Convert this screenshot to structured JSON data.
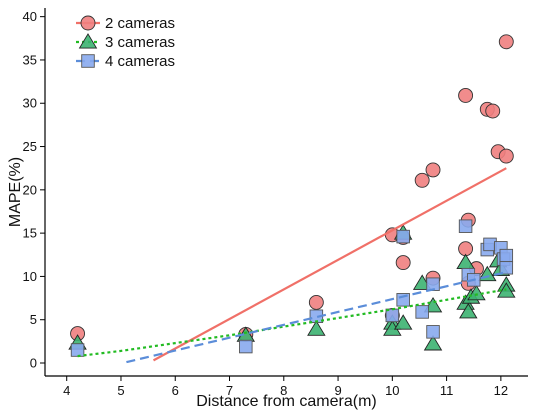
{
  "chart_data": {
    "type": "scatter",
    "title": "",
    "xlabel": "Distance from camera(m)",
    "ylabel": "MAPE(%)",
    "xlim": [
      3.6,
      12.5
    ],
    "ylim": [
      -1.5,
      41
    ],
    "xticks": [
      4,
      5,
      6,
      7,
      8,
      9,
      10,
      11,
      12
    ],
    "yticks": [
      0,
      5,
      10,
      15,
      20,
      25,
      30,
      35,
      40
    ],
    "grid": false,
    "legend_position": "top-left",
    "series": [
      {
        "name": "2 cameras",
        "marker": "circle",
        "color": "#f08080",
        "line_color": "#f07068",
        "line_style": "solid",
        "points": [
          [
            4.2,
            3.4
          ],
          [
            7.3,
            3.3
          ],
          [
            8.6,
            7.0
          ],
          [
            10.0,
            14.8
          ],
          [
            10.0,
            5.5
          ],
          [
            10.2,
            11.6
          ],
          [
            10.2,
            14.5
          ],
          [
            10.55,
            21.1
          ],
          [
            10.75,
            22.3
          ],
          [
            10.75,
            9.8
          ],
          [
            11.35,
            30.9
          ],
          [
            11.35,
            13.2
          ],
          [
            11.4,
            16.5
          ],
          [
            11.4,
            9.2
          ],
          [
            11.55,
            10.9
          ],
          [
            11.75,
            29.3
          ],
          [
            11.85,
            29.1
          ],
          [
            11.95,
            24.4
          ],
          [
            12.1,
            23.9
          ],
          [
            12.1,
            37.1
          ]
        ],
        "trend": [
          [
            5.6,
            0.3
          ],
          [
            12.1,
            22.5
          ]
        ]
      },
      {
        "name": "3 cameras",
        "marker": "triangle",
        "color": "#3cb371",
        "line_color": "#22bb22",
        "line_style": "dotted",
        "points": [
          [
            4.2,
            2.3
          ],
          [
            7.3,
            3.2
          ],
          [
            8.6,
            3.9
          ],
          [
            10.0,
            4.6
          ],
          [
            10.0,
            3.9
          ],
          [
            10.2,
            15.0
          ],
          [
            10.2,
            4.6
          ],
          [
            10.55,
            9.2
          ],
          [
            10.75,
            6.6
          ],
          [
            10.75,
            2.2
          ],
          [
            11.35,
            11.6
          ],
          [
            11.35,
            6.9
          ],
          [
            11.4,
            5.9
          ],
          [
            11.45,
            7.6
          ],
          [
            11.55,
            8.0
          ],
          [
            11.75,
            10.2
          ],
          [
            11.95,
            11.8
          ],
          [
            12.0,
            10.8
          ],
          [
            12.1,
            9.0
          ],
          [
            12.1,
            8.3
          ]
        ],
        "trend": [
          [
            4.2,
            0.8
          ],
          [
            5.0,
            1.4
          ],
          [
            6.0,
            2.3
          ],
          [
            7.0,
            3.2
          ],
          [
            8.0,
            4.2
          ],
          [
            9.0,
            5.2
          ],
          [
            10.0,
            6.2
          ],
          [
            11.0,
            7.3
          ],
          [
            12.1,
            8.5
          ]
        ]
      },
      {
        "name": "4 cameras",
        "marker": "square",
        "color": "#88aaee",
        "line_color": "#5b8dd9",
        "line_style": "dashed",
        "points": [
          [
            4.2,
            1.5
          ],
          [
            7.3,
            1.9
          ],
          [
            8.6,
            5.4
          ],
          [
            10.0,
            5.5
          ],
          [
            10.2,
            14.6
          ],
          [
            10.2,
            7.3
          ],
          [
            10.55,
            5.9
          ],
          [
            10.75,
            9.1
          ],
          [
            10.75,
            3.6
          ],
          [
            11.35,
            15.8
          ],
          [
            11.4,
            10.2
          ],
          [
            11.5,
            9.6
          ],
          [
            11.75,
            13.1
          ],
          [
            11.8,
            13.7
          ],
          [
            12.0,
            13.3
          ],
          [
            12.05,
            12.0
          ],
          [
            12.1,
            12.4
          ],
          [
            12.1,
            11.0
          ]
        ],
        "trend": [
          [
            5.1,
            0.1
          ],
          [
            12.1,
            10.5
          ]
        ]
      }
    ]
  }
}
